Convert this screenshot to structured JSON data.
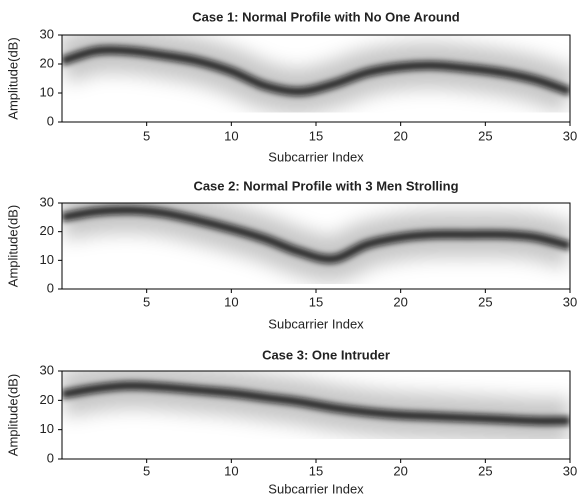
{
  "chart_data": [
    {
      "type": "density-line",
      "title": "Case 1: Normal Profile with No One Around",
      "x_label": "Subcarrier Index",
      "y_label": "Amplitude(dB)",
      "xlim": [
        0,
        30
      ],
      "ylim": [
        0,
        30
      ],
      "xticks": [
        5,
        10,
        15,
        20,
        25,
        30
      ],
      "yticks": [
        0,
        10,
        20,
        30
      ],
      "series": [
        {
          "color": "#111111",
          "x": [
            0,
            2,
            4,
            6,
            8,
            10,
            12,
            14,
            16,
            18,
            20,
            22,
            24,
            26,
            28,
            30
          ],
          "values": [
            21,
            24.5,
            24.5,
            23,
            21,
            17.5,
            12.5,
            10.5,
            13,
            17,
            19,
            19.5,
            18.5,
            17,
            14.5,
            10.5
          ]
        }
      ]
    },
    {
      "type": "density-line",
      "title": "Case 2: Normal Profile with 3 Men Strolling",
      "x_label": "Subcarrier Index",
      "y_label": "Amplitude(dB)",
      "xlim": [
        0,
        30
      ],
      "ylim": [
        0,
        30
      ],
      "xticks": [
        5,
        10,
        15,
        20,
        25,
        30
      ],
      "yticks": [
        0,
        10,
        20,
        30
      ],
      "series": [
        {
          "color": "#111111",
          "x": [
            0,
            2,
            4,
            6,
            8,
            10,
            12,
            14,
            16,
            18,
            20,
            22,
            24,
            26,
            28,
            30
          ],
          "values": [
            25,
            27,
            27.5,
            26.5,
            24,
            21,
            17.5,
            13,
            10.5,
            15.5,
            18,
            19,
            19,
            19,
            18,
            15
          ]
        }
      ]
    },
    {
      "type": "density-line",
      "title": "Case 3: One Intruder",
      "x_label": "Subcarrier Index",
      "y_label": "Amplitude(dB)",
      "xlim": [
        0,
        30
      ],
      "ylim": [
        0,
        30
      ],
      "xticks": [
        5,
        10,
        15,
        20,
        25,
        30
      ],
      "yticks": [
        0,
        10,
        20,
        30
      ],
      "series": [
        {
          "color": "#111111",
          "x": [
            0,
            2,
            4,
            6,
            8,
            10,
            12,
            14,
            16,
            18,
            20,
            22,
            24,
            26,
            28,
            30
          ],
          "values": [
            22,
            24,
            25,
            24.5,
            23.5,
            22.5,
            21,
            19.5,
            17.5,
            16,
            15,
            14.5,
            14,
            13.5,
            13,
            13
          ]
        }
      ]
    }
  ]
}
